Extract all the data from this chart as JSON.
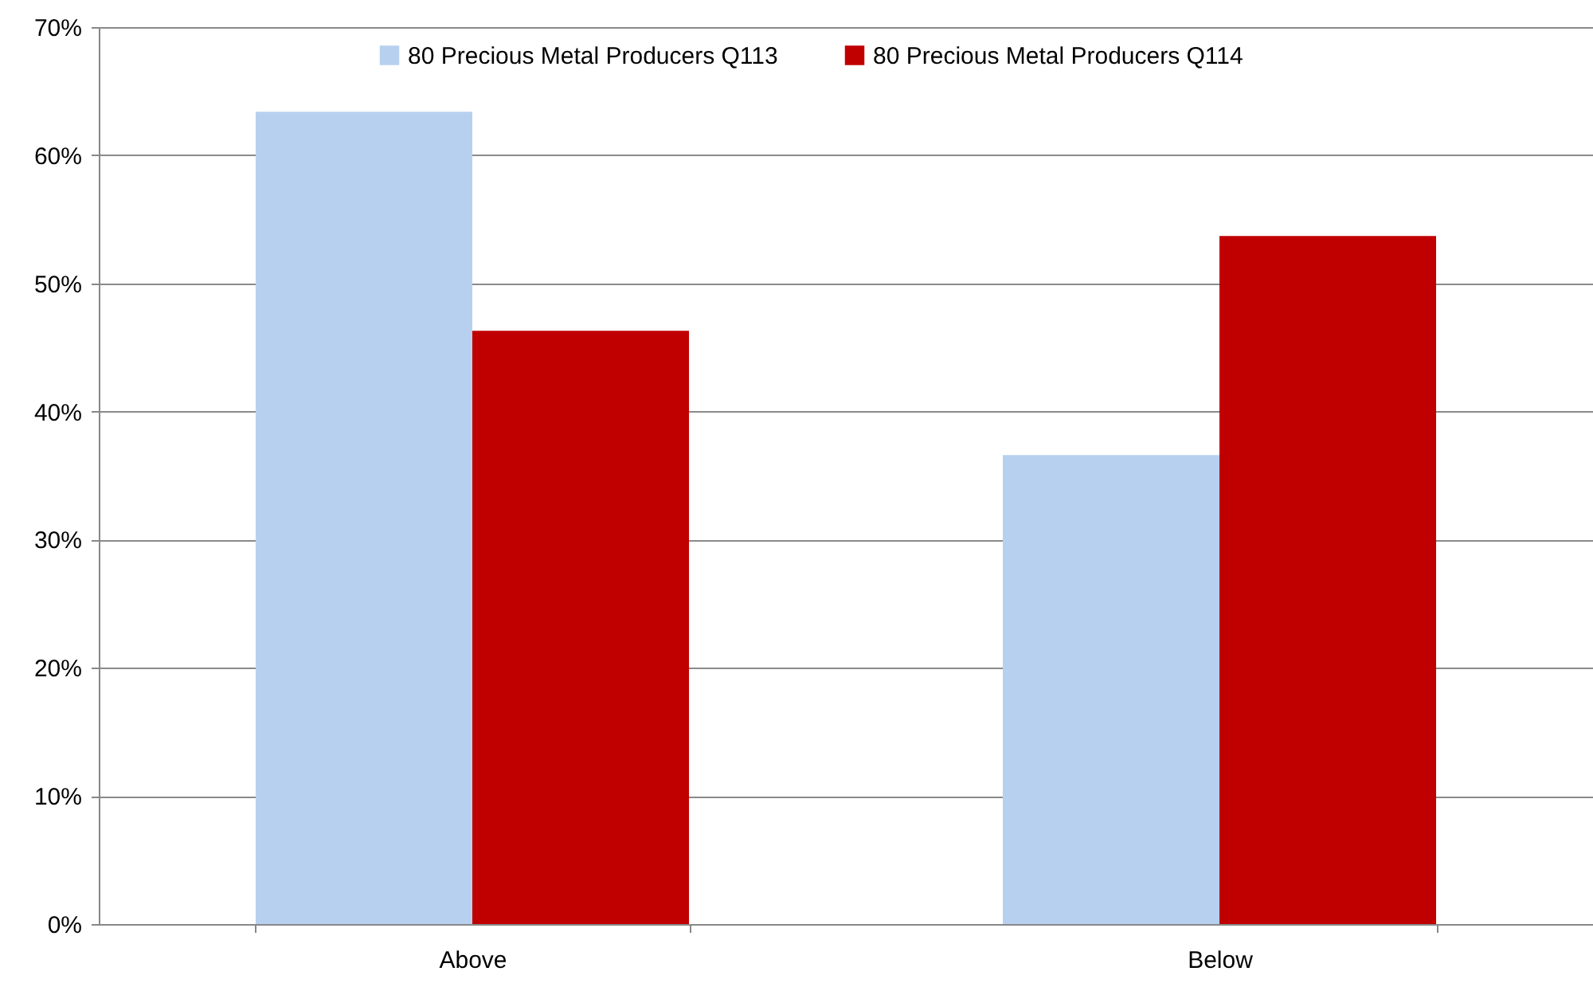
{
  "chart_data": {
    "type": "bar",
    "categories": [
      "Above",
      "Below"
    ],
    "series": [
      {
        "name": "80 Precious Metal Producers Q113",
        "color": "#b7d0f0",
        "values": [
          63.4,
          36.6
        ]
      },
      {
        "name": "80 Precious Metal Producers Q114",
        "color": "#c00000",
        "values": [
          46.3,
          53.7
        ]
      }
    ],
    "ylim": [
      0,
      70
    ],
    "yticks": [
      {
        "value": 0,
        "label": "0%"
      },
      {
        "value": 10,
        "label": "10%"
      },
      {
        "value": 20,
        "label": "20%"
      },
      {
        "value": 30,
        "label": "30%"
      },
      {
        "value": 40,
        "label": "40%"
      },
      {
        "value": 50,
        "label": "50%"
      },
      {
        "value": 60,
        "label": "60%"
      },
      {
        "value": 70,
        "label": "70%"
      }
    ],
    "grid": "y",
    "legend": "top"
  }
}
